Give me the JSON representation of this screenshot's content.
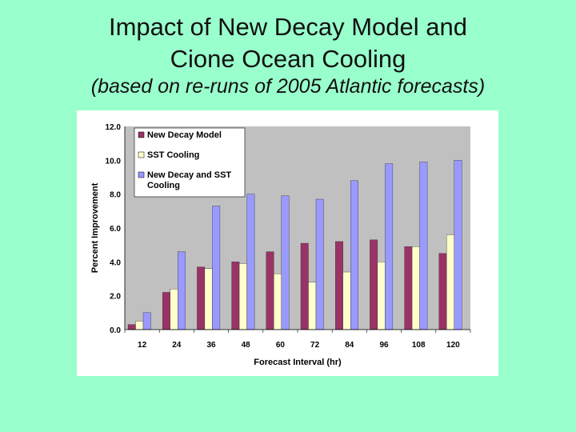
{
  "slide": {
    "title_line1": "Impact of New Decay Model and",
    "title_line2": "Cione Ocean Cooling",
    "subtitle": "(based on re-runs of 2005 Atlantic forecasts)"
  },
  "colors": {
    "background": "#99ffcc",
    "new_decay": "#993366",
    "sst_cooling": "#ffffcc",
    "combined": "#9999ff",
    "plot_area": "#c0c0c0"
  },
  "chart_data": {
    "type": "bar",
    "title": "",
    "xlabel": "Forecast Interval (hr)",
    "ylabel": "Percent Improvement",
    "ylim": [
      0,
      12
    ],
    "yticks": [
      "0.0",
      "2.0",
      "4.0",
      "6.0",
      "8.0",
      "10.0",
      "12.0"
    ],
    "categories": [
      "12",
      "24",
      "36",
      "48",
      "60",
      "72",
      "84",
      "96",
      "108",
      "120"
    ],
    "grid": false,
    "legend_position": "top-left",
    "series": [
      {
        "name": "New Decay Model",
        "color": "#993366",
        "values": [
          0.3,
          2.2,
          3.7,
          4.0,
          4.6,
          5.1,
          5.2,
          5.3,
          4.9,
          4.5
        ]
      },
      {
        "name": "SST Cooling",
        "color": "#ffffcc",
        "values": [
          0.5,
          2.4,
          3.6,
          3.9,
          3.3,
          2.8,
          3.4,
          4.0,
          4.9,
          5.6
        ]
      },
      {
        "name": "New Decay and SST Cooling",
        "color": "#9999ff",
        "values": [
          1.0,
          4.6,
          7.3,
          8.0,
          7.9,
          7.7,
          8.8,
          9.8,
          9.9,
          10.0
        ]
      }
    ]
  }
}
